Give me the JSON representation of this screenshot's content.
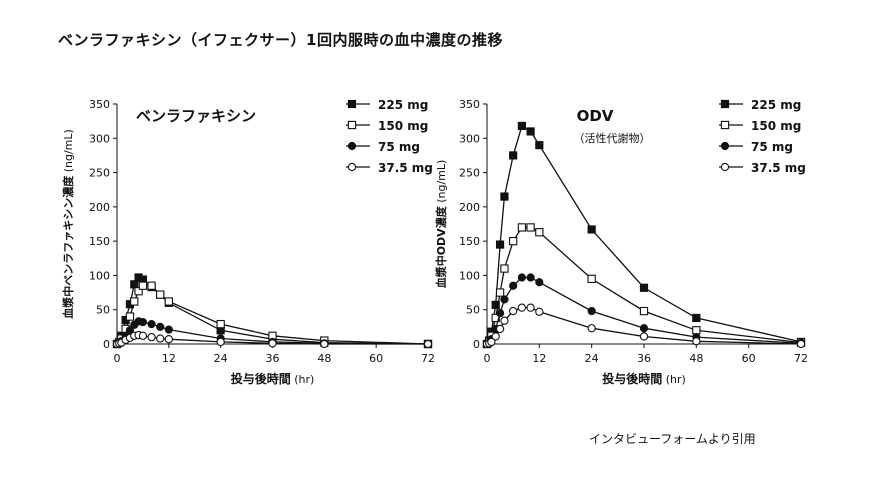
{
  "page": {
    "title": "ベンラファキシン（イフェクサー）1回内服時の血中濃度の推移",
    "credit": "インタビューフォームより引用"
  },
  "chart_data": [
    {
      "type": "line",
      "title": "ベンラファキシン",
      "subtitle": "",
      "xlabel_main": "投与後時間",
      "xlabel_unit": "(hr)",
      "ylabel_main": "血漿中ベンラファキシン濃度",
      "ylabel_unit": "(ng/mL)",
      "xlim": [
        0,
        72
      ],
      "ylim": [
        0,
        350
      ],
      "xticks": [
        0,
        12,
        24,
        36,
        48,
        60,
        72
      ],
      "yticks": [
        0,
        50,
        100,
        150,
        200,
        250,
        300,
        350
      ],
      "x": [
        0,
        0.5,
        1,
        2,
        3,
        4,
        5,
        6,
        8,
        10,
        12,
        24,
        36,
        48,
        72
      ],
      "series": [
        {
          "name": "225 mg",
          "marker": "square-filled",
          "values": [
            0,
            3,
            12,
            35,
            58,
            87,
            97,
            94,
            83,
            72,
            60,
            20,
            7,
            2,
            0
          ]
        },
        {
          "name": "150 mg",
          "marker": "square-open",
          "values": [
            0,
            2,
            8,
            22,
            40,
            62,
            77,
            85,
            85,
            72,
            62,
            29,
            12,
            5,
            0
          ]
        },
        {
          "name": "75 mg",
          "marker": "circle-filled",
          "values": [
            0,
            1,
            4,
            12,
            20,
            28,
            33,
            32,
            29,
            25,
            21,
            8,
            3,
            1,
            0
          ]
        },
        {
          "name": "37.5 mg",
          "marker": "circle-open",
          "values": [
            0,
            1,
            2,
            6,
            9,
            12,
            13,
            12,
            10,
            8,
            7,
            3,
            1,
            0,
            0
          ]
        }
      ]
    },
    {
      "type": "line",
      "title": "ODV",
      "subtitle": "（活性代謝物）",
      "xlabel_main": "投与後時間",
      "xlabel_unit": "(hr)",
      "ylabel_main": "血漿中ODV濃度",
      "ylabel_unit": "(ng/mL)",
      "xlim": [
        0,
        72
      ],
      "ylim": [
        0,
        350
      ],
      "xticks": [
        0,
        12,
        24,
        36,
        48,
        60,
        72
      ],
      "yticks": [
        0,
        50,
        100,
        150,
        200,
        250,
        300,
        350
      ],
      "x": [
        0,
        0.5,
        1,
        2,
        3,
        4,
        6,
        8,
        10,
        12,
        24,
        36,
        48,
        72
      ],
      "series": [
        {
          "name": "225 mg",
          "marker": "square-filled",
          "values": [
            0,
            5,
            18,
            57,
            145,
            215,
            275,
            318,
            310,
            290,
            167,
            82,
            38,
            3
          ]
        },
        {
          "name": "150 mg",
          "marker": "square-open",
          "values": [
            0,
            3,
            12,
            38,
            75,
            110,
            150,
            170,
            170,
            163,
            95,
            48,
            20,
            2
          ]
        },
        {
          "name": "75 mg",
          "marker": "circle-filled",
          "values": [
            0,
            2,
            7,
            22,
            45,
            65,
            85,
            97,
            97,
            90,
            48,
            23,
            10,
            1
          ]
        },
        {
          "name": "37.5 mg",
          "marker": "circle-open",
          "values": [
            0,
            1,
            3,
            11,
            22,
            34,
            48,
            53,
            53,
            47,
            23,
            11,
            4,
            0
          ]
        }
      ]
    }
  ]
}
